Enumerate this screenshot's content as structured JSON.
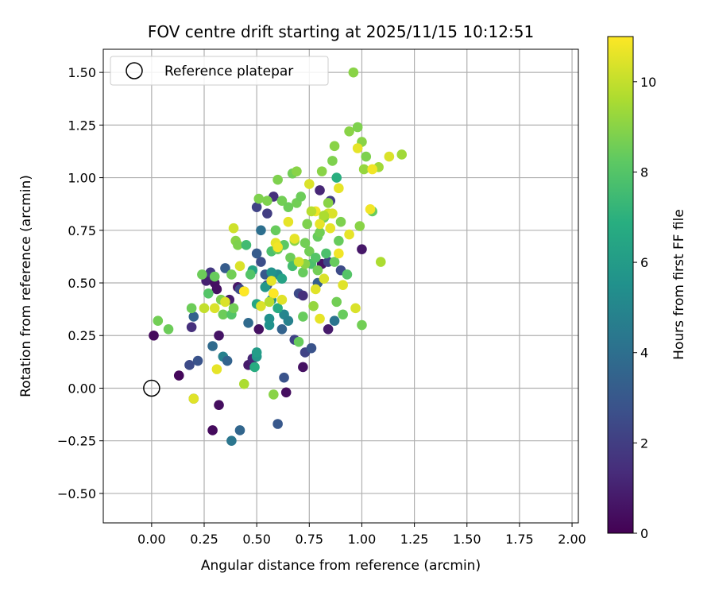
{
  "chart_data": {
    "type": "scatter",
    "title": "FOV centre drift starting at 2025/11/15 10:12:51",
    "xlabel": "Angular distance from reference (arcmin)",
    "ylabel": "Rotation from reference (arcmin)",
    "xlim": [
      -0.23,
      2.03
    ],
    "ylim": [
      -0.64,
      1.61
    ],
    "xticks": [
      0.0,
      0.25,
      0.5,
      0.75,
      1.0,
      1.25,
      1.5,
      1.75,
      2.0
    ],
    "xtick_labels": [
      "0.00",
      "0.25",
      "0.50",
      "0.75",
      "1.00",
      "1.25",
      "1.50",
      "1.75",
      "2.00"
    ],
    "yticks": [
      -0.5,
      -0.25,
      0.0,
      0.25,
      0.5,
      0.75,
      1.0,
      1.25,
      1.5
    ],
    "ytick_labels": [
      "−0.50",
      "−0.25",
      "0.00",
      "0.25",
      "0.50",
      "0.75",
      "1.00",
      "1.25",
      "1.50"
    ],
    "grid": true,
    "legend": {
      "placement": "top-left",
      "entries": [
        "Reference platepar"
      ]
    },
    "reference_point": {
      "x": 0.0,
      "y": 0.0
    },
    "colorbar": {
      "label": "Hours from first FF file",
      "colormap": "viridis",
      "range": [
        0,
        11
      ],
      "ticks": [
        0,
        2,
        4,
        6,
        8,
        10
      ],
      "tick_labels": [
        "0",
        "2",
        "4",
        "6",
        "8",
        "10"
      ]
    },
    "series": [
      {
        "points": [
          [
            0.01,
            0.25,
            0.3
          ],
          [
            0.13,
            0.06,
            0.2
          ],
          [
            0.18,
            0.11,
            2.5
          ],
          [
            0.2,
            -0.05,
            3.2
          ],
          [
            0.22,
            0.13,
            2.8
          ],
          [
            0.19,
            0.29,
            1.5
          ],
          [
            0.2,
            0.34,
            3.5
          ],
          [
            0.26,
            0.51,
            1.0
          ],
          [
            0.28,
            0.55,
            1.8
          ],
          [
            0.3,
            0.5,
            0.5
          ],
          [
            0.31,
            0.47,
            0.5
          ],
          [
            0.32,
            0.25,
            0.6
          ],
          [
            0.32,
            -0.08,
            0.4
          ],
          [
            0.29,
            -0.2,
            0.3
          ],
          [
            0.29,
            0.2,
            3.8
          ],
          [
            0.34,
            0.15,
            4.8
          ],
          [
            0.36,
            0.13,
            3.5
          ],
          [
            0.38,
            -0.25,
            4.3
          ],
          [
            0.42,
            -0.2,
            3.6
          ],
          [
            0.35,
            0.57,
            3.2
          ],
          [
            0.37,
            0.42,
            0.9
          ],
          [
            0.41,
            0.48,
            0.7
          ],
          [
            0.46,
            0.11,
            0.8
          ],
          [
            0.48,
            0.14,
            1.2
          ],
          [
            0.49,
            0.1,
            6.8
          ],
          [
            0.5,
            0.15,
            5.8
          ],
          [
            0.5,
            0.17,
            6.0
          ],
          [
            0.46,
            0.31,
            3.8
          ],
          [
            0.51,
            0.28,
            0.5
          ],
          [
            0.56,
            0.3,
            5.5
          ],
          [
            0.6,
            -0.17,
            3.0
          ],
          [
            0.63,
            0.05,
            2.8
          ],
          [
            0.64,
            -0.02,
            0.4
          ],
          [
            0.62,
            0.28,
            3.5
          ],
          [
            0.68,
            0.23,
            2.2
          ],
          [
            0.73,
            0.17,
            2.2
          ],
          [
            0.72,
            0.1,
            0.5
          ],
          [
            0.76,
            0.19,
            2.8
          ],
          [
            0.84,
            0.28,
            0.8
          ],
          [
            0.87,
            0.32,
            4.2
          ],
          [
            0.52,
            0.6,
            2.6
          ],
          [
            0.54,
            0.54,
            3.0
          ],
          [
            0.55,
            0.49,
            2.9
          ],
          [
            0.5,
            0.86,
            2.2
          ],
          [
            0.55,
            0.83,
            2.0
          ],
          [
            0.58,
            0.91,
            1.5
          ],
          [
            0.52,
            0.75,
            4.0
          ],
          [
            0.5,
            0.64,
            3.2
          ],
          [
            0.44,
            0.46,
            6.6
          ],
          [
            0.42,
            0.47,
            2.5
          ],
          [
            0.5,
            0.4,
            6.5
          ],
          [
            0.54,
            0.48,
            5.8
          ],
          [
            0.57,
            0.42,
            5.5
          ],
          [
            0.58,
            0.45,
            4.5
          ],
          [
            0.63,
            0.35,
            5.0
          ],
          [
            0.65,
            0.32,
            4.8
          ],
          [
            0.7,
            0.45,
            2.5
          ],
          [
            0.72,
            0.44,
            1.5
          ],
          [
            0.79,
            0.5,
            3.3
          ],
          [
            0.81,
            0.59,
            0.6
          ],
          [
            0.8,
            0.94,
            1.2
          ],
          [
            0.84,
            0.6,
            2.3
          ],
          [
            0.85,
            0.89,
            2.0
          ],
          [
            1.0,
            0.66,
            0.7
          ],
          [
            0.88,
            1.0,
            6.9
          ],
          [
            0.9,
            0.56,
            2.5
          ],
          [
            0.6,
            0.54,
            5.2
          ],
          [
            0.57,
            0.55,
            5.6
          ],
          [
            0.62,
            0.52,
            6.3
          ],
          [
            0.48,
            0.56,
            6.4
          ],
          [
            0.6,
            0.38,
            6.8
          ],
          [
            0.56,
            0.33,
            5.5
          ],
          [
            0.03,
            0.32,
            8.6
          ],
          [
            0.08,
            0.28,
            8.5
          ],
          [
            0.19,
            0.38,
            8.5
          ],
          [
            0.24,
            0.54,
            8.5
          ],
          [
            0.27,
            0.45,
            8.0
          ],
          [
            0.3,
            0.53,
            8.4
          ],
          [
            0.33,
            0.42,
            8.8
          ],
          [
            0.34,
            0.35,
            8.5
          ],
          [
            0.38,
            0.35,
            8.0
          ],
          [
            0.39,
            0.38,
            8.6
          ],
          [
            0.38,
            0.54,
            8.6
          ],
          [
            0.4,
            0.7,
            9.0
          ],
          [
            0.41,
            0.68,
            8.8
          ],
          [
            0.45,
            0.68,
            7.5
          ],
          [
            0.47,
            0.54,
            8.0
          ],
          [
            0.51,
            0.9,
            8.8
          ],
          [
            0.55,
            0.89,
            8.8
          ],
          [
            0.57,
            0.65,
            7.8
          ],
          [
            0.59,
            0.75,
            8.4
          ],
          [
            0.6,
            0.99,
            8.8
          ],
          [
            0.6,
            0.66,
            8.5
          ],
          [
            0.62,
            0.89,
            8.6
          ],
          [
            0.63,
            0.68,
            8.2
          ],
          [
            0.65,
            0.86,
            8.5
          ],
          [
            0.67,
            1.02,
            8.6
          ],
          [
            0.68,
            0.7,
            9.0
          ],
          [
            0.69,
            1.03,
            9.0
          ],
          [
            0.69,
            0.88,
            8.6
          ],
          [
            0.71,
            0.91,
            8.5
          ],
          [
            0.72,
            0.55,
            8.4
          ],
          [
            0.73,
            0.69,
            8.6
          ],
          [
            0.74,
            0.78,
            8.8
          ],
          [
            0.75,
            0.65,
            8.6
          ],
          [
            0.76,
            0.59,
            7.8
          ],
          [
            0.78,
            0.62,
            8.0
          ],
          [
            0.79,
            0.56,
            8.6
          ],
          [
            0.79,
            0.72,
            8.4
          ],
          [
            0.8,
            0.74,
            8.6
          ],
          [
            0.81,
            1.03,
            9.0
          ],
          [
            0.82,
            0.81,
            8.6
          ],
          [
            0.83,
            0.64,
            7.8
          ],
          [
            0.84,
            0.88,
            9.0
          ],
          [
            0.86,
            1.08,
            8.8
          ],
          [
            0.87,
            1.15,
            9.0
          ],
          [
            0.87,
            0.6,
            8.4
          ],
          [
            0.88,
            0.41,
            8.6
          ],
          [
            0.89,
            0.7,
            8.4
          ],
          [
            0.9,
            0.79,
            8.8
          ],
          [
            0.91,
            0.35,
            8.4
          ],
          [
            0.93,
            0.54,
            8.0
          ],
          [
            0.94,
            1.22,
            9.0
          ],
          [
            0.96,
            1.5,
            9.0
          ],
          [
            0.98,
            1.24,
            8.8
          ],
          [
            0.99,
            0.77,
            9.0
          ],
          [
            1.0,
            1.17,
            9.0
          ],
          [
            1.0,
            0.3,
            8.6
          ],
          [
            1.01,
            1.04,
            9.2
          ],
          [
            1.02,
            1.1,
            8.8
          ],
          [
            1.05,
            0.84,
            8.4
          ],
          [
            1.08,
            1.05,
            9.4
          ],
          [
            1.09,
            0.6,
            9.6
          ],
          [
            1.19,
            1.11,
            9.4
          ],
          [
            0.58,
            -0.03,
            9.0
          ],
          [
            0.44,
            0.02,
            9.6
          ],
          [
            0.7,
            0.22,
            8.4
          ],
          [
            0.66,
            0.62,
            8.5
          ],
          [
            0.67,
            0.58,
            7.6
          ],
          [
            0.72,
            0.34,
            8.4
          ],
          [
            0.73,
            0.59,
            9.0
          ],
          [
            0.77,
            0.39,
            9.2
          ],
          [
            0.2,
            -0.05,
            10.5
          ],
          [
            0.31,
            0.09,
            10.6
          ],
          [
            0.35,
            0.41,
            10.4
          ],
          [
            0.42,
            0.58,
            10.4
          ],
          [
            0.39,
            0.76,
            10.2
          ],
          [
            0.44,
            0.46,
            11.0
          ],
          [
            0.52,
            0.39,
            10.4
          ],
          [
            0.57,
            0.51,
            10.6
          ],
          [
            0.58,
            0.45,
            11.0
          ],
          [
            0.59,
            0.69,
            10.6
          ],
          [
            0.6,
            0.67,
            10.8
          ],
          [
            0.62,
            0.42,
            10.5
          ],
          [
            0.65,
            0.79,
            10.6
          ],
          [
            0.68,
            0.71,
            10.6
          ],
          [
            0.7,
            0.6,
            10.2
          ],
          [
            0.75,
            0.97,
            10.4
          ],
          [
            0.78,
            0.47,
            10.5
          ],
          [
            0.78,
            0.84,
            10.8
          ],
          [
            0.8,
            0.78,
            10.6
          ],
          [
            0.82,
            0.52,
            10.4
          ],
          [
            0.84,
            0.83,
            10.2
          ],
          [
            0.85,
            0.76,
            10.6
          ],
          [
            0.86,
            0.83,
            10.4
          ],
          [
            0.89,
            0.95,
            10.6
          ],
          [
            0.89,
            0.64,
            10.8
          ],
          [
            0.91,
            0.49,
            10.5
          ],
          [
            0.94,
            0.73,
            10.6
          ],
          [
            0.97,
            0.38,
            10.4
          ],
          [
            0.98,
            1.14,
            10.6
          ],
          [
            1.04,
            0.85,
            10.8
          ],
          [
            1.05,
            1.04,
            10.8
          ],
          [
            1.13,
            1.1,
            10.4
          ],
          [
            0.25,
            0.38,
            10.0
          ],
          [
            0.3,
            0.38,
            10.4
          ],
          [
            0.8,
            0.33,
            10.6
          ],
          [
            0.56,
            0.41,
            9.8
          ],
          [
            0.76,
            0.84,
            9.8
          ],
          [
            0.82,
            0.82,
            9.6
          ]
        ]
      }
    ]
  }
}
